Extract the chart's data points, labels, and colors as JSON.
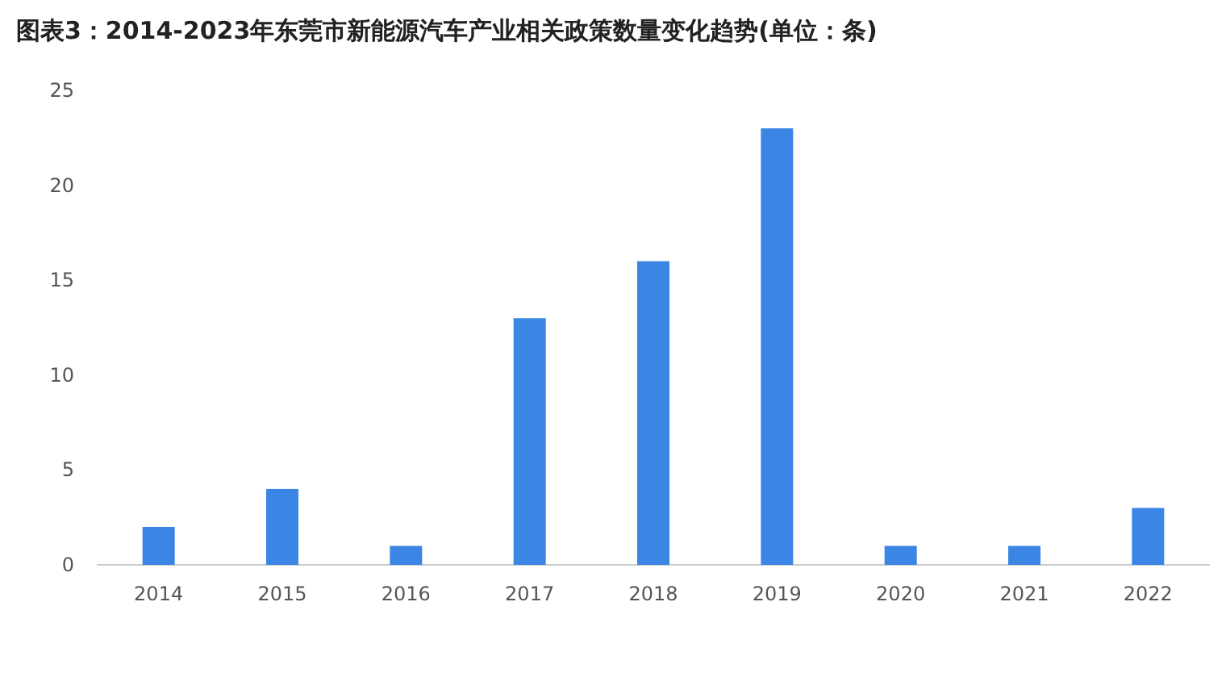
{
  "chart_data": {
    "type": "bar",
    "title": "图表3：2014-2023年东莞市新能源汽车产业相关政策数量变化趋势(单位：条)",
    "categories": [
      "2014",
      "2015",
      "2016",
      "2017",
      "2018",
      "2019",
      "2020",
      "2021",
      "2022"
    ],
    "values": [
      2,
      4,
      1,
      13,
      16,
      23,
      1,
      1,
      3
    ],
    "color": "#3b86e4",
    "ylim": [
      0,
      25
    ],
    "yticks": [
      0,
      5,
      10,
      15,
      20,
      25
    ],
    "grid": false
  }
}
